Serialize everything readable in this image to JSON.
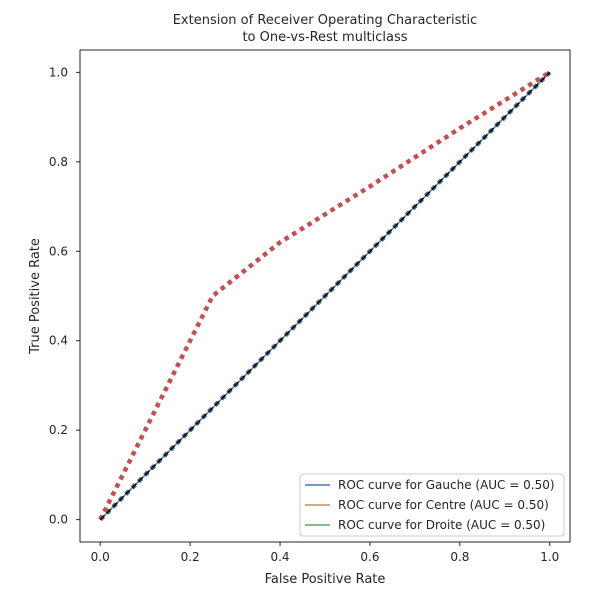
{
  "chart_data": {
    "type": "line",
    "title_line1": "Extension of Receiver Operating Characteristic",
    "title_line2": "to One-vs-Rest multiclass",
    "xlabel": "False Positive Rate",
    "ylabel": "True Positive Rate",
    "xlim": [
      -0.045,
      1.045
    ],
    "ylim": [
      -0.05,
      1.05
    ],
    "xticks": [
      "0.0",
      "0.2",
      "0.4",
      "0.6",
      "0.8",
      "1.0"
    ],
    "yticks": [
      "0.0",
      "0.2",
      "0.4",
      "0.6",
      "0.8",
      "1.0"
    ],
    "grid": false,
    "legend_position": "lower-right",
    "series": [
      {
        "name": "ROC curve for Gauche (AUC = 0.50)",
        "color": "#4c72b0",
        "style": "solid",
        "points": [
          [
            0,
            0
          ],
          [
            1,
            1
          ]
        ]
      },
      {
        "name": "ROC curve for Centre (AUC = 0.50)",
        "color": "#dd8452",
        "style": "solid",
        "points": [
          [
            0,
            0
          ],
          [
            1,
            1
          ]
        ]
      },
      {
        "name": "ROC curve for Droite (AUC = 0.50)",
        "color": "#55a868",
        "style": "solid",
        "points": [
          [
            0,
            0
          ],
          [
            1,
            1
          ]
        ]
      },
      {
        "color": "#4c72b0",
        "style": "dotted",
        "points": [
          [
            0,
            0
          ],
          [
            1,
            1
          ]
        ]
      },
      {
        "color": "#c44e52",
        "style": "dotted",
        "points": [
          [
            0,
            0
          ],
          [
            0.25,
            0.5
          ],
          [
            0.4,
            0.62
          ],
          [
            0.6,
            0.745
          ],
          [
            0.8,
            0.875
          ],
          [
            1,
            1
          ]
        ]
      },
      {
        "color": "#000000",
        "style": "dashed",
        "points": [
          [
            0,
            0
          ],
          [
            1,
            1
          ]
        ]
      }
    ]
  }
}
